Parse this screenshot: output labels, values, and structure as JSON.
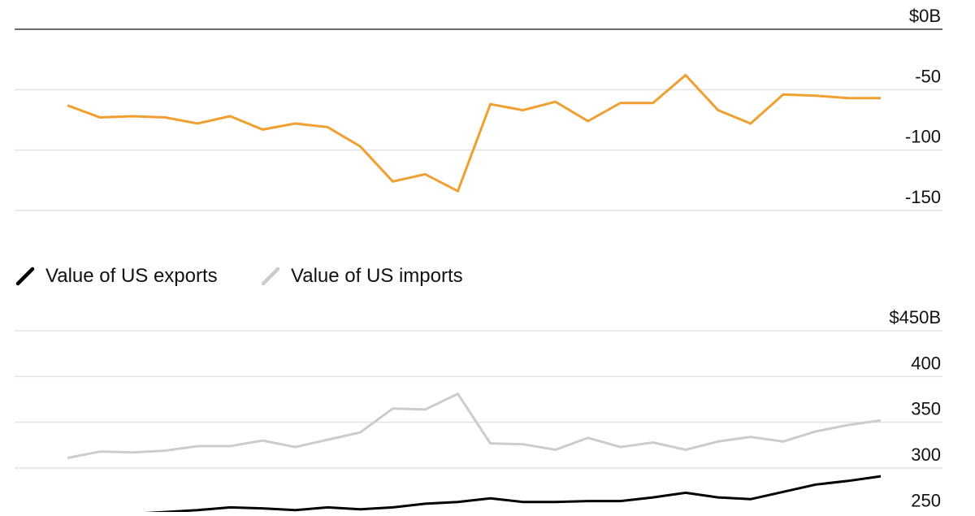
{
  "chart_data": [
    {
      "type": "line",
      "title": "",
      "xlabel": "",
      "ylabel": "",
      "ylim": [
        -150,
        0
      ],
      "yticks": [
        {
          "value": 0,
          "label": "$0B"
        },
        {
          "value": -50,
          "label": "-50"
        },
        {
          "value": -100,
          "label": "-100"
        },
        {
          "value": -150,
          "label": "-150"
        }
      ],
      "grid": true,
      "series": [
        {
          "color": "#f0a030",
          "values": [
            -63,
            -73,
            -72,
            -73,
            -78,
            -72,
            -83,
            -78,
            -81,
            -97,
            -126,
            -120,
            -134,
            -62,
            -67,
            -60,
            -76,
            -61,
            -61,
            -38,
            -67,
            -78,
            -54,
            -55,
            -57,
            -57
          ]
        }
      ]
    },
    {
      "type": "line",
      "title": "",
      "xlabel": "",
      "ylabel": "",
      "ylim": [
        240,
        450
      ],
      "yticks": [
        {
          "value": 450,
          "label": "$450B"
        },
        {
          "value": 400,
          "label": "400"
        },
        {
          "value": 350,
          "label": "350"
        },
        {
          "value": 300,
          "label": "300"
        },
        {
          "value": 250,
          "label": "250"
        }
      ],
      "grid": true,
      "legend": "top-left",
      "series": [
        {
          "name": "Value of US exports",
          "color": "#000000",
          "values": [
            249,
            250,
            250,
            252,
            254,
            257,
            256,
            254,
            257,
            255,
            257,
            261,
            263,
            267,
            263,
            263,
            264,
            264,
            268,
            273,
            268,
            266,
            274,
            282,
            286,
            291
          ]
        },
        {
          "name": "Value of US imports",
          "color": "#cccccc",
          "values": [
            311,
            318,
            317,
            319,
            324,
            324,
            330,
            323,
            331,
            339,
            365,
            364,
            381,
            327,
            326,
            320,
            333,
            323,
            328,
            320,
            329,
            334,
            329,
            340,
            347,
            352
          ]
        }
      ]
    }
  ]
}
